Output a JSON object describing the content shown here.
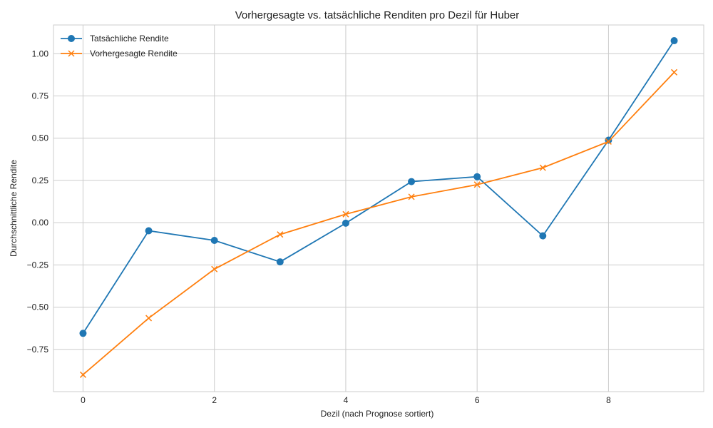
{
  "chart_data": {
    "type": "line",
    "title": "Vorhergesagte vs. tatsächliche Renditen pro Dezil für Huber",
    "xlabel": "Dezil (nach Prognose sortiert)",
    "ylabel": "Durchschnittliche Rendite",
    "x": [
      0,
      1,
      2,
      3,
      4,
      5,
      6,
      7,
      8,
      9
    ],
    "xlim": [
      -0.45,
      9.45
    ],
    "ylim": [
      -1.0,
      1.17
    ],
    "xticks": [
      0,
      2,
      4,
      6,
      8
    ],
    "xtick_labels": [
      "0",
      "2",
      "4",
      "6",
      "8"
    ],
    "yticks": [
      -0.75,
      -0.5,
      -0.25,
      0.0,
      0.25,
      0.5,
      0.75,
      1.0
    ],
    "ytick_labels": [
      "−0.75",
      "−0.50",
      "−0.25",
      "0.00",
      "0.25",
      "0.50",
      "0.75",
      "1.00"
    ],
    "grid": true,
    "legend_position": "top-left",
    "series": [
      {
        "name": "Tatsächliche Rendite",
        "marker": "circle",
        "color": "#1f77b4",
        "values": [
          -0.655,
          -0.048,
          -0.105,
          -0.232,
          -0.003,
          0.243,
          0.272,
          -0.078,
          0.488,
          1.077
        ]
      },
      {
        "name": "Vorhergesagte Rendite",
        "marker": "x",
        "color": "#ff7f0e",
        "values": [
          -0.9,
          -0.565,
          -0.275,
          -0.07,
          0.05,
          0.153,
          0.225,
          0.325,
          0.48,
          0.89
        ]
      }
    ]
  }
}
